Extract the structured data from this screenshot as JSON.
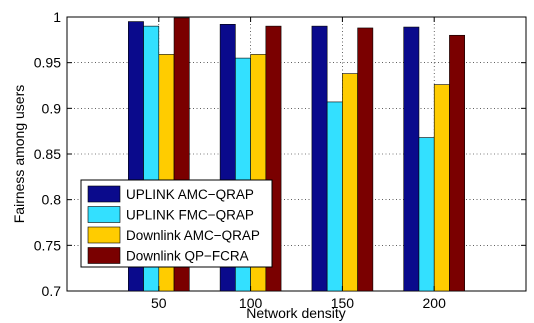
{
  "chart_data": {
    "type": "bar",
    "xlabel": "Network density",
    "ylabel": "Fairness among users",
    "ylim": [
      0.7,
      1.0
    ],
    "yticks": [
      "0.7",
      "0.75",
      "0.8",
      "0.85",
      "0.9",
      "0.95",
      "1"
    ],
    "categories": [
      "50",
      "100",
      "150",
      "200"
    ],
    "grid": true,
    "legend_position": "left",
    "series": [
      {
        "name": "UPLINK AMC−QRAP",
        "color": "#0a0a8c",
        "values": [
          0.995,
          0.992,
          0.99,
          0.989
        ]
      },
      {
        "name": "UPLINK FMC−QRAP",
        "color": "#33e0ff",
        "values": [
          0.99,
          0.955,
          0.907,
          0.868
        ]
      },
      {
        "name": "Downlink AMC−QRAP",
        "color": "#ffcc00",
        "values": [
          0.959,
          0.959,
          0.938,
          0.926
        ]
      },
      {
        "name": "Downlink QP−FCRA",
        "color": "#7a0000",
        "values": [
          0.999,
          0.99,
          0.988,
          0.98
        ]
      }
    ]
  }
}
